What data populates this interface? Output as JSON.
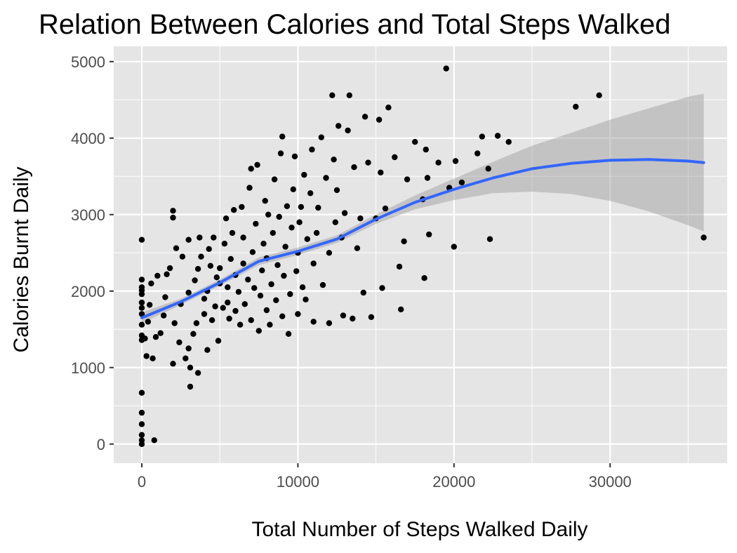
{
  "chart_data": {
    "type": "scatter",
    "title": "Relation Between Calories and Total Steps Walked",
    "xlabel": "Total Number of Steps Walked Daily",
    "ylabel": "Calories Burnt Daily",
    "xlim": [
      -1800,
      37500
    ],
    "ylim": [
      -250,
      5200
    ],
    "x_ticks": [
      0,
      10000,
      20000,
      30000
    ],
    "x_tick_labels": [
      "0",
      "10000",
      "20000",
      "30000"
    ],
    "y_ticks": [
      0,
      1000,
      2000,
      3000,
      4000,
      5000
    ],
    "y_tick_labels": [
      "0",
      "1000",
      "2000",
      "3000",
      "4000",
      "5000"
    ],
    "grid": true,
    "colors": {
      "panel": "#e5e5e5",
      "grid": "#ffffff",
      "points": "#000000",
      "smooth_line": "#3366ff",
      "confidence_band": "#999999"
    },
    "series": [
      {
        "type": "scatter",
        "points": [
          [
            0,
            0
          ],
          [
            0,
            50
          ],
          [
            0,
            120
          ],
          [
            0,
            260
          ],
          [
            0,
            410
          ],
          [
            0,
            670
          ],
          [
            800,
            50
          ],
          [
            0,
            1360
          ],
          [
            0,
            1420
          ],
          [
            0,
            1560
          ],
          [
            0,
            1700
          ],
          [
            0,
            1780
          ],
          [
            0,
            1850
          ],
          [
            0,
            1960
          ],
          [
            0,
            2010
          ],
          [
            0,
            2050
          ],
          [
            0,
            2150
          ],
          [
            0,
            2670
          ],
          [
            200,
            1380
          ],
          [
            300,
            1150
          ],
          [
            400,
            1600
          ],
          [
            500,
            1820
          ],
          [
            600,
            2100
          ],
          [
            700,
            1120
          ],
          [
            900,
            1400
          ],
          [
            1000,
            2200
          ],
          [
            1200,
            1450
          ],
          [
            1400,
            1680
          ],
          [
            1500,
            1920
          ],
          [
            1600,
            2220
          ],
          [
            1800,
            2300
          ],
          [
            2000,
            1050
          ],
          [
            2000,
            2960
          ],
          [
            2000,
            3050
          ],
          [
            2100,
            1580
          ],
          [
            2200,
            2560
          ],
          [
            2400,
            1330
          ],
          [
            2500,
            1830
          ],
          [
            2600,
            2450
          ],
          [
            2800,
            1120
          ],
          [
            3000,
            1250
          ],
          [
            3000,
            1980
          ],
          [
            3000,
            2670
          ],
          [
            3100,
            750
          ],
          [
            3100,
            1000
          ],
          [
            3300,
            1440
          ],
          [
            3400,
            2140
          ],
          [
            3500,
            1580
          ],
          [
            3600,
            930
          ],
          [
            3600,
            2290
          ],
          [
            3700,
            2700
          ],
          [
            3800,
            2450
          ],
          [
            4000,
            1700
          ],
          [
            4000,
            1900
          ],
          [
            4200,
            2000
          ],
          [
            4200,
            1230
          ],
          [
            4300,
            2550
          ],
          [
            4400,
            2330
          ],
          [
            4500,
            1620
          ],
          [
            4600,
            2700
          ],
          [
            4700,
            1800
          ],
          [
            4800,
            2180
          ],
          [
            4900,
            1350
          ],
          [
            5000,
            2100
          ],
          [
            5000,
            2300
          ],
          [
            5200,
            1780
          ],
          [
            5300,
            2620
          ],
          [
            5400,
            2950
          ],
          [
            5500,
            1850
          ],
          [
            5500,
            2050
          ],
          [
            5600,
            1640
          ],
          [
            5700,
            2420
          ],
          [
            5800,
            2760
          ],
          [
            5900,
            3060
          ],
          [
            6000,
            1740
          ],
          [
            6000,
            2210
          ],
          [
            6200,
            1990
          ],
          [
            6300,
            1560
          ],
          [
            6400,
            3100
          ],
          [
            6500,
            2360
          ],
          [
            6500,
            2700
          ],
          [
            6600,
            1830
          ],
          [
            6800,
            2150
          ],
          [
            6900,
            3350
          ],
          [
            7000,
            1620
          ],
          [
            7000,
            3600
          ],
          [
            7100,
            2510
          ],
          [
            7200,
            2040
          ],
          [
            7300,
            2880
          ],
          [
            7400,
            3650
          ],
          [
            7500,
            1480
          ],
          [
            7600,
            1940
          ],
          [
            7700,
            2270
          ],
          [
            7800,
            2620
          ],
          [
            7900,
            3180
          ],
          [
            8000,
            1750
          ],
          [
            8000,
            2430
          ],
          [
            8100,
            3000
          ],
          [
            8200,
            1560
          ],
          [
            8300,
            2090
          ],
          [
            8400,
            2760
          ],
          [
            8500,
            3460
          ],
          [
            8600,
            1880
          ],
          [
            8700,
            2340
          ],
          [
            8800,
            2970
          ],
          [
            8900,
            3800
          ],
          [
            9000,
            4020
          ],
          [
            9000,
            1670
          ],
          [
            9100,
            2200
          ],
          [
            9200,
            2580
          ],
          [
            9300,
            3110
          ],
          [
            9400,
            1440
          ],
          [
            9500,
            1960
          ],
          [
            9600,
            2830
          ],
          [
            9700,
            3330
          ],
          [
            9800,
            3760
          ],
          [
            9900,
            2260
          ],
          [
            10000,
            1700
          ],
          [
            10000,
            2500
          ],
          [
            10100,
            2900
          ],
          [
            10200,
            3100
          ],
          [
            10300,
            2050
          ],
          [
            10400,
            3520
          ],
          [
            10500,
            1890
          ],
          [
            10600,
            2680
          ],
          [
            10800,
            3280
          ],
          [
            10900,
            3850
          ],
          [
            11000,
            1600
          ],
          [
            11000,
            2360
          ],
          [
            11200,
            2760
          ],
          [
            11300,
            3090
          ],
          [
            11500,
            4010
          ],
          [
            11600,
            2080
          ],
          [
            11800,
            3480
          ],
          [
            12000,
            1580
          ],
          [
            12000,
            2500
          ],
          [
            12200,
            4560
          ],
          [
            12300,
            3720
          ],
          [
            12400,
            2900
          ],
          [
            12500,
            3320
          ],
          [
            12600,
            4160
          ],
          [
            12800,
            2700
          ],
          [
            12900,
            1680
          ],
          [
            13000,
            3020
          ],
          [
            13200,
            4100
          ],
          [
            13300,
            4560
          ],
          [
            13500,
            1640
          ],
          [
            13600,
            3620
          ],
          [
            13800,
            2560
          ],
          [
            14000,
            2950
          ],
          [
            14200,
            1980
          ],
          [
            14300,
            4280
          ],
          [
            14500,
            3680
          ],
          [
            14700,
            1660
          ],
          [
            15000,
            2950
          ],
          [
            15200,
            4240
          ],
          [
            15300,
            3550
          ],
          [
            15400,
            2040
          ],
          [
            15600,
            3080
          ],
          [
            15800,
            4400
          ],
          [
            16200,
            3750
          ],
          [
            16500,
            2320
          ],
          [
            16600,
            1760
          ],
          [
            16800,
            2650
          ],
          [
            17000,
            3460
          ],
          [
            17500,
            3950
          ],
          [
            18000,
            3200
          ],
          [
            18100,
            2170
          ],
          [
            18200,
            3850
          ],
          [
            18300,
            3480
          ],
          [
            18400,
            2740
          ],
          [
            19000,
            3680
          ],
          [
            19500,
            4910
          ],
          [
            19700,
            3350
          ],
          [
            20000,
            2580
          ],
          [
            20100,
            3700
          ],
          [
            20500,
            3420
          ],
          [
            21500,
            3800
          ],
          [
            21800,
            4020
          ],
          [
            22200,
            3600
          ],
          [
            22300,
            2680
          ],
          [
            22800,
            4030
          ],
          [
            23500,
            3950
          ],
          [
            27800,
            4410
          ],
          [
            29300,
            4560
          ],
          [
            36000,
            2700
          ]
        ]
      },
      {
        "type": "smooth",
        "method": "loess",
        "points": [
          [
            0,
            1650
          ],
          [
            2500,
            1860
          ],
          [
            5000,
            2110
          ],
          [
            7500,
            2390
          ],
          [
            10000,
            2520
          ],
          [
            12500,
            2680
          ],
          [
            15000,
            2940
          ],
          [
            17500,
            3160
          ],
          [
            20000,
            3330
          ],
          [
            22500,
            3480
          ],
          [
            25000,
            3600
          ],
          [
            27500,
            3670
          ],
          [
            30000,
            3710
          ],
          [
            32500,
            3720
          ],
          [
            35000,
            3700
          ],
          [
            36000,
            3680
          ]
        ],
        "band": [
          [
            0,
            1580,
            1720
          ],
          [
            2500,
            1820,
            1900
          ],
          [
            5000,
            2070,
            2150
          ],
          [
            7500,
            2340,
            2440
          ],
          [
            10000,
            2470,
            2570
          ],
          [
            12500,
            2630,
            2730
          ],
          [
            15000,
            2880,
            3000
          ],
          [
            17500,
            3070,
            3250
          ],
          [
            20000,
            3190,
            3470
          ],
          [
            22500,
            3280,
            3690
          ],
          [
            25000,
            3300,
            3900
          ],
          [
            27500,
            3270,
            4070
          ],
          [
            30000,
            3180,
            4240
          ],
          [
            32500,
            3040,
            4390
          ],
          [
            35000,
            2860,
            4540
          ],
          [
            36000,
            2780,
            4580
          ]
        ]
      }
    ]
  }
}
